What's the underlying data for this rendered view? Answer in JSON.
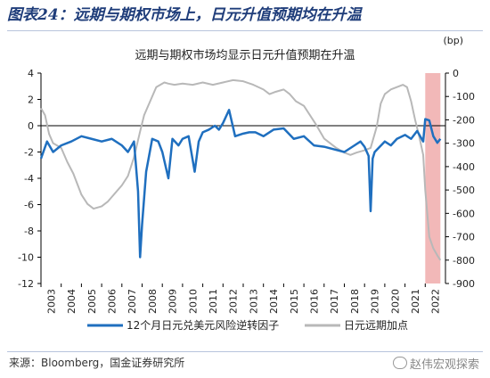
{
  "figure_title": "图表24：远期与期权市场上，日元升值预期均在升温",
  "source": "来源：Bloomberg，国金证券研究所",
  "watermark": "赵伟宏观探索",
  "colors": {
    "left_series": "#1f6fbf",
    "right_series": "#b8b8b8",
    "highlight": "#f2b8b8",
    "title": "#1f3d7a"
  },
  "chart_data": {
    "type": "line",
    "title": "远期与期权市场均显示日元升值预期在升温",
    "left_axis": {
      "range": [
        -12,
        4
      ],
      "ticks": [
        4,
        2,
        0,
        -2,
        -4,
        -6,
        -8,
        -10,
        -12
      ]
    },
    "right_axis": {
      "unit": "(bp)",
      "range": [
        -900,
        0
      ],
      "ticks": [
        0,
        -100,
        -200,
        -300,
        -400,
        -500,
        -600,
        -700,
        -800,
        -900
      ]
    },
    "x_axis": {
      "range": [
        2003,
        2023
      ],
      "ticks": [
        "2003",
        "2004",
        "2005",
        "2006",
        "2007",
        "2008",
        "2009",
        "2010",
        "2011",
        "2012",
        "2013",
        "2014",
        "2015",
        "2016",
        "2017",
        "2018",
        "2019",
        "2020",
        "2021",
        "2022"
      ]
    },
    "highlight": {
      "x_start": 2022.0,
      "x_end": 2022.75
    },
    "legend": {
      "placement": "bottom"
    },
    "grid": false,
    "series": [
      {
        "name": "12个月日元兑美元风险逆转因子",
        "axis": "left",
        "x": [
          2003.0,
          2003.3,
          2003.6,
          2004.0,
          2004.5,
          2005.0,
          2005.5,
          2006.0,
          2006.5,
          2007.0,
          2007.3,
          2007.6,
          2007.8,
          2007.9,
          2008.0,
          2008.2,
          2008.5,
          2008.8,
          2009.0,
          2009.3,
          2009.5,
          2009.8,
          2010.0,
          2010.3,
          2010.6,
          2010.8,
          2011.0,
          2011.3,
          2011.6,
          2011.8,
          2012.0,
          2012.3,
          2012.6,
          2013.0,
          2013.3,
          2013.6,
          2014.0,
          2014.5,
          2015.0,
          2015.5,
          2016.0,
          2016.5,
          2017.0,
          2017.5,
          2018.0,
          2018.5,
          2018.8,
          2019.0,
          2019.2,
          2019.3,
          2019.4,
          2019.5,
          2020.0,
          2020.3,
          2020.6,
          2021.0,
          2021.3,
          2021.6,
          2021.9,
          2022.0,
          2022.2,
          2022.4,
          2022.6,
          2022.75
        ],
        "y": [
          -2.5,
          -1.2,
          -2.0,
          -1.5,
          -1.2,
          -0.8,
          -1.0,
          -1.2,
          -1.0,
          -1.5,
          -2.0,
          -1.2,
          -5.0,
          -10.0,
          -7.5,
          -3.5,
          -1.0,
          -1.2,
          -2.0,
          -4.0,
          -1.0,
          -1.5,
          -1.0,
          -0.8,
          -3.5,
          -1.2,
          -0.5,
          -0.3,
          0.0,
          -0.3,
          0.2,
          1.2,
          -0.8,
          -0.6,
          -0.5,
          -0.5,
          -0.8,
          -0.3,
          -0.2,
          -1.0,
          -0.8,
          -1.5,
          -1.6,
          -1.8,
          -2.0,
          -1.5,
          -1.2,
          -1.6,
          -2.3,
          -6.5,
          -2.5,
          -2.0,
          -1.2,
          -1.5,
          -1.0,
          -0.7,
          -1.0,
          -0.4,
          -1.2,
          0.5,
          0.4,
          -0.8,
          -1.3,
          -1.0
        ]
      },
      {
        "name": "日元远期加点",
        "axis": "right",
        "x": [
          2003.0,
          2003.2,
          2003.4,
          2003.6,
          2004.0,
          2004.3,
          2004.6,
          2005.0,
          2005.3,
          2005.6,
          2006.0,
          2006.3,
          2006.6,
          2007.0,
          2007.3,
          2007.6,
          2007.9,
          2008.1,
          2008.4,
          2008.7,
          2008.9,
          2009.1,
          2009.3,
          2009.6,
          2010.0,
          2010.5,
          2011.0,
          2011.5,
          2012.0,
          2012.5,
          2013.0,
          2013.5,
          2014.0,
          2014.3,
          2014.6,
          2015.0,
          2015.3,
          2015.6,
          2016.0,
          2016.3,
          2016.6,
          2017.0,
          2017.3,
          2017.6,
          2018.0,
          2018.3,
          2018.6,
          2019.0,
          2019.3,
          2019.6,
          2019.8,
          2020.0,
          2020.3,
          2020.6,
          2020.9,
          2021.1,
          2021.3,
          2021.5,
          2021.7,
          2021.9,
          2022.0,
          2022.2,
          2022.4,
          2022.6,
          2022.75
        ],
        "y": [
          -150,
          -180,
          -260,
          -300,
          -320,
          -380,
          -430,
          -520,
          -560,
          -580,
          -570,
          -550,
          -520,
          -480,
          -440,
          -360,
          -250,
          -180,
          -120,
          -60,
          -50,
          -40,
          -45,
          -50,
          -45,
          -50,
          -40,
          -50,
          -40,
          -30,
          -35,
          -50,
          -70,
          -90,
          -80,
          -70,
          -90,
          -120,
          -140,
          -180,
          -220,
          -280,
          -300,
          -320,
          -340,
          -350,
          -340,
          -330,
          -320,
          -230,
          -130,
          -90,
          -70,
          -60,
          -50,
          -60,
          -120,
          -200,
          -270,
          -350,
          -500,
          -700,
          -750,
          -780,
          -800
        ]
      }
    ]
  }
}
